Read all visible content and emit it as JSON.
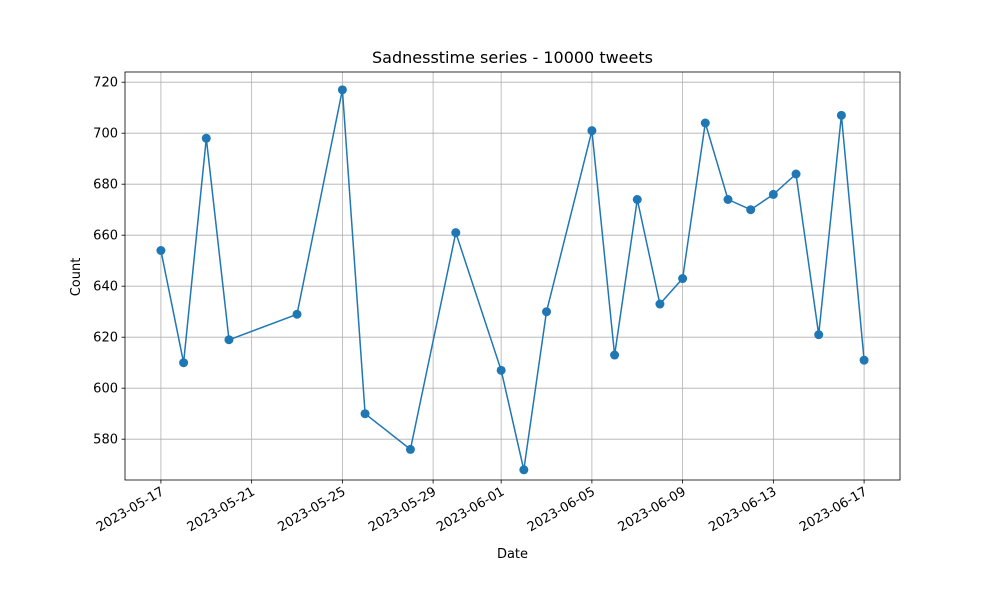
{
  "chart_data": {
    "type": "line",
    "title": "Sadnesstime series - 10000 tweets",
    "xlabel": "Date",
    "ylabel": "Count",
    "grid": true,
    "marker": "circle",
    "color": "#1f77b4",
    "xlim": [
      "2023-05-15T10:00",
      "2023-06-18T14:00"
    ],
    "ylim": [
      564,
      724
    ],
    "xticks": [
      "2023-05-17",
      "2023-05-21",
      "2023-05-25",
      "2023-05-29",
      "2023-06-01",
      "2023-06-05",
      "2023-06-09",
      "2023-06-13",
      "2023-06-17"
    ],
    "yticks": [
      580,
      600,
      620,
      640,
      660,
      680,
      700,
      720
    ],
    "series": [
      {
        "points": [
          {
            "x": "2023-05-17",
            "y": 654
          },
          {
            "x": "2023-05-18",
            "y": 610
          },
          {
            "x": "2023-05-19",
            "y": 698
          },
          {
            "x": "2023-05-20",
            "y": 619
          },
          {
            "x": "2023-05-23",
            "y": 629
          },
          {
            "x": "2023-05-25",
            "y": 717
          },
          {
            "x": "2023-05-26",
            "y": 590
          },
          {
            "x": "2023-05-28",
            "y": 576
          },
          {
            "x": "2023-05-30",
            "y": 661
          },
          {
            "x": "2023-06-01",
            "y": 607
          },
          {
            "x": "2023-06-02",
            "y": 568
          },
          {
            "x": "2023-06-03",
            "y": 630
          },
          {
            "x": "2023-06-05",
            "y": 701
          },
          {
            "x": "2023-06-06",
            "y": 613
          },
          {
            "x": "2023-06-07",
            "y": 674
          },
          {
            "x": "2023-06-08",
            "y": 633
          },
          {
            "x": "2023-06-09",
            "y": 643
          },
          {
            "x": "2023-06-10",
            "y": 704
          },
          {
            "x": "2023-06-11",
            "y": 674
          },
          {
            "x": "2023-06-12",
            "y": 670
          },
          {
            "x": "2023-06-13",
            "y": 676
          },
          {
            "x": "2023-06-14",
            "y": 684
          },
          {
            "x": "2023-06-15",
            "y": 621
          },
          {
            "x": "2023-06-16",
            "y": 707
          },
          {
            "x": "2023-06-17",
            "y": 611
          }
        ]
      }
    ]
  }
}
